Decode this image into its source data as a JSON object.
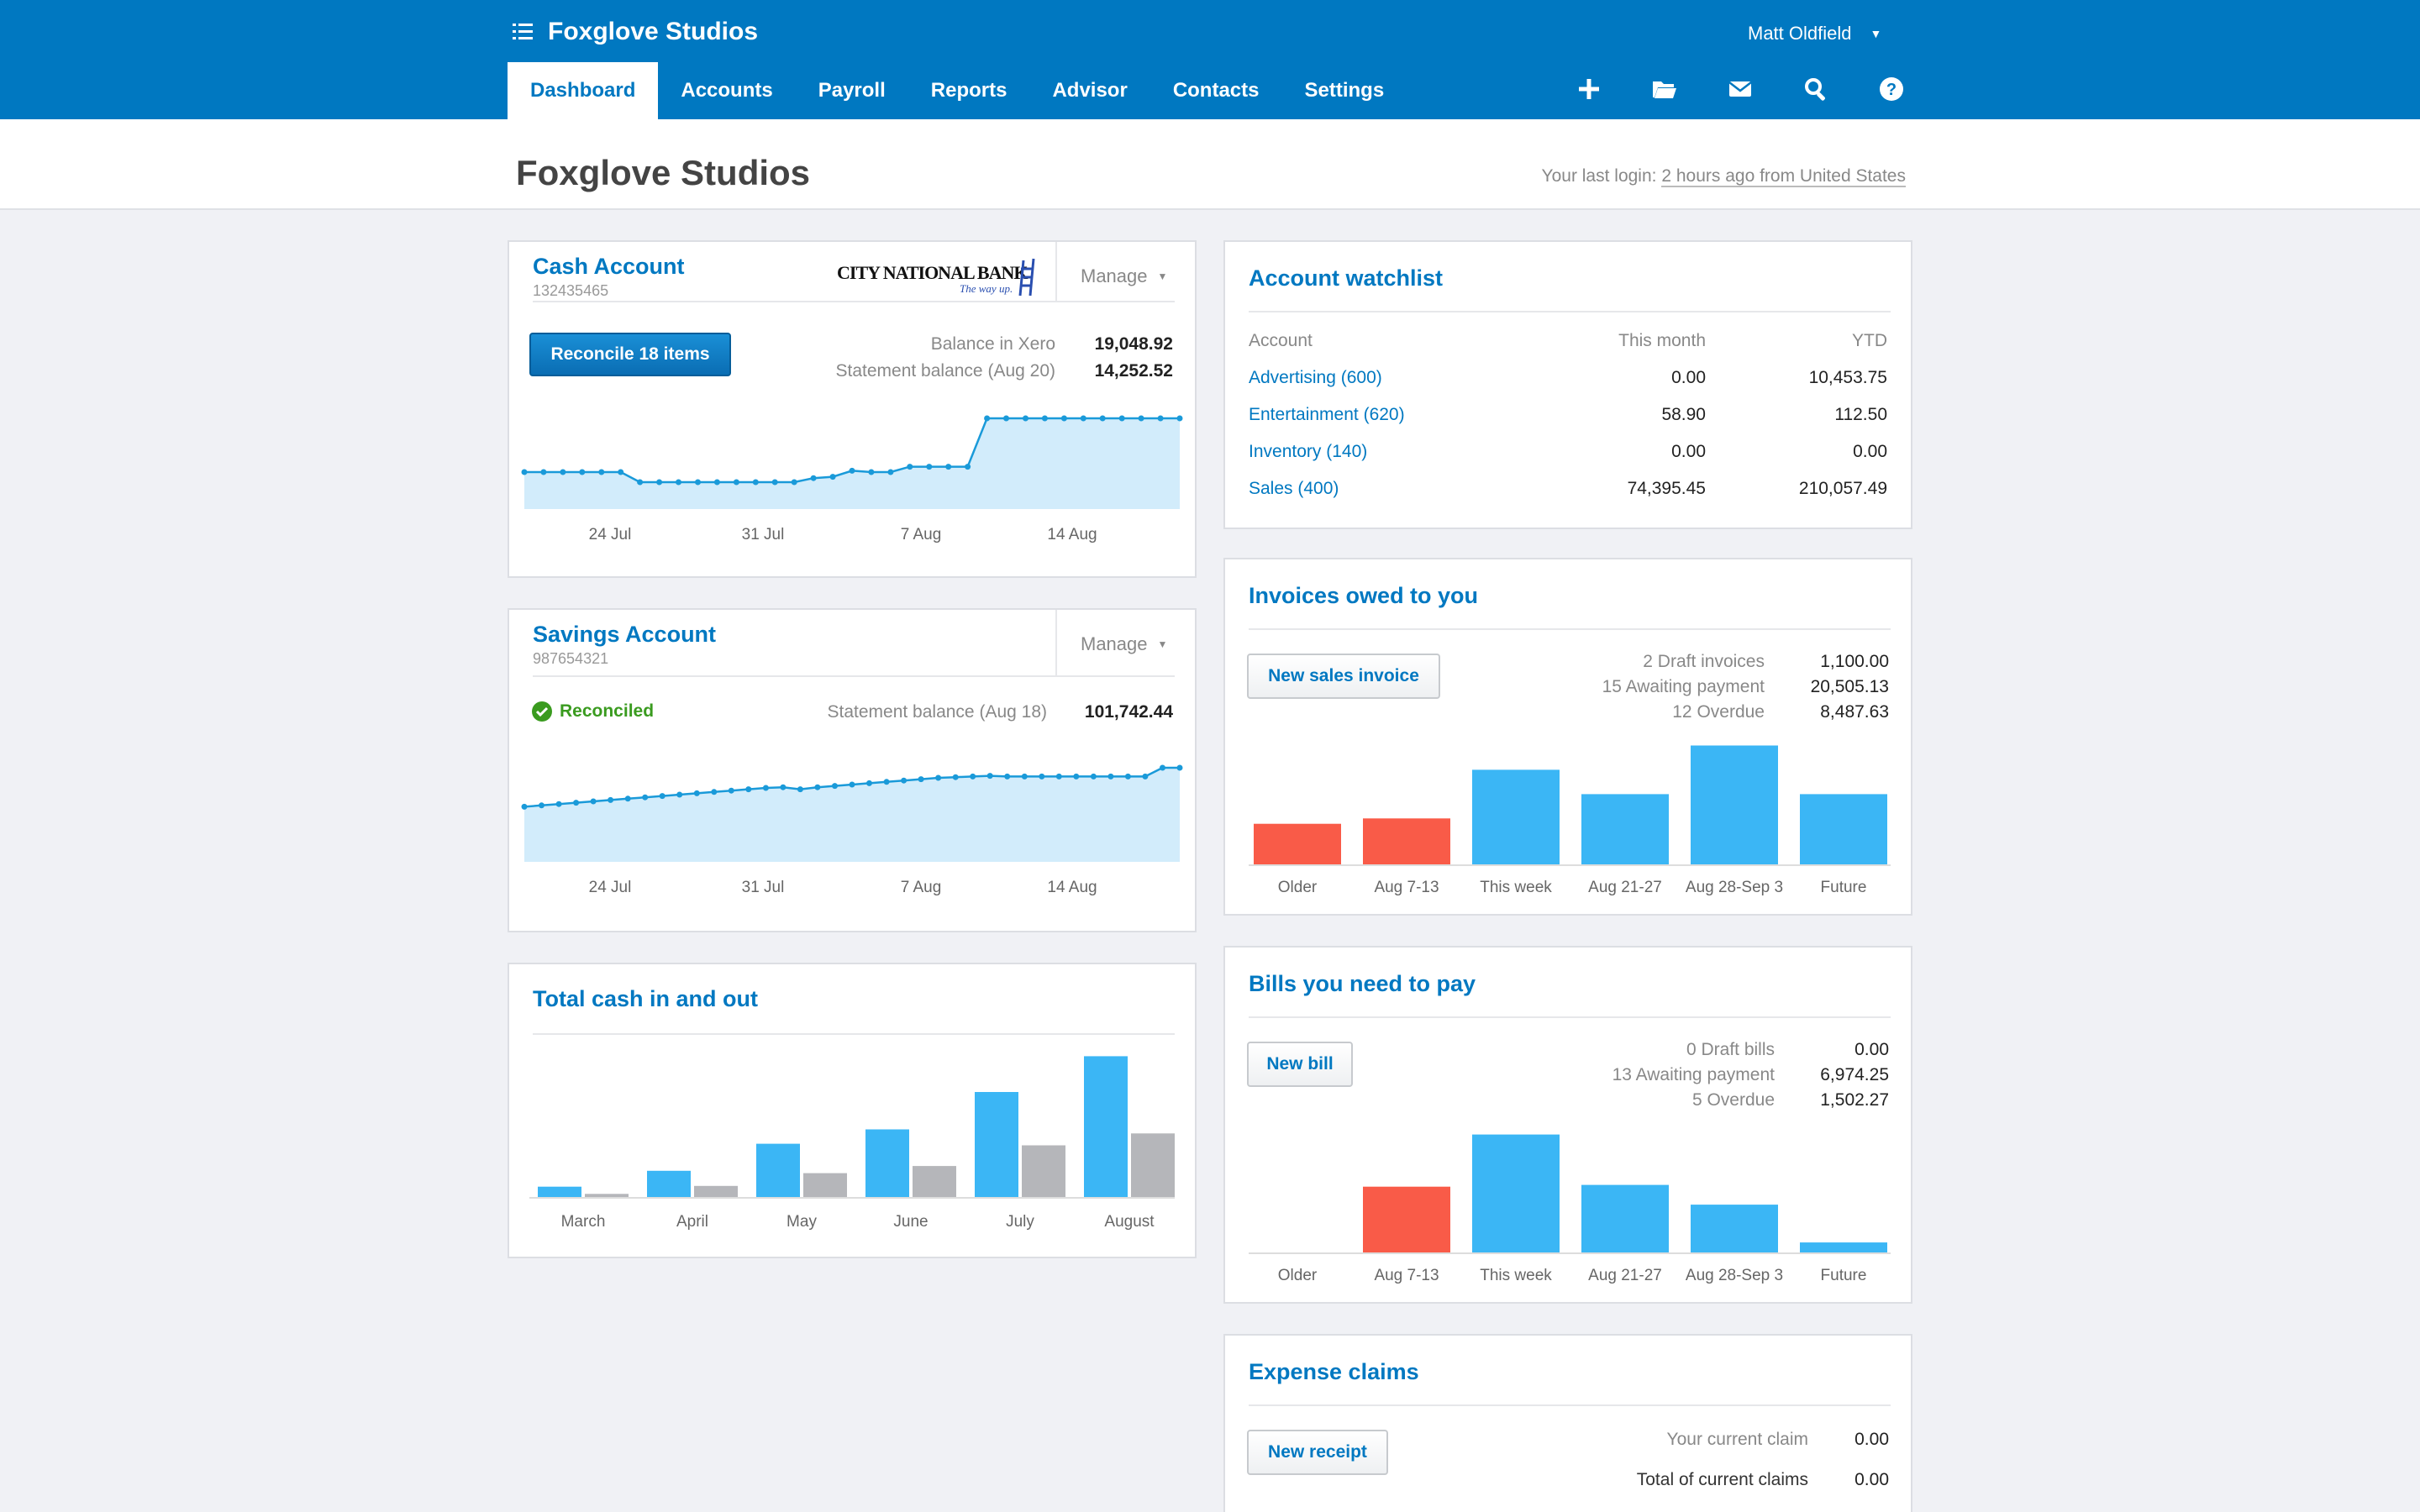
{
  "header": {
    "org_name": "Foxglove Studios",
    "user_name": "Matt Oldfield",
    "tabs": [
      "Dashboard",
      "Accounts",
      "Payroll",
      "Reports",
      "Advisor",
      "Contacts",
      "Settings"
    ],
    "active_tab": "Dashboard",
    "tool_icons": [
      "plus-icon",
      "folder-icon",
      "mail-icon",
      "search-icon",
      "help-icon"
    ],
    "colors": {
      "brand": "#0078c1",
      "bar_blue": "#3bb6f5",
      "bar_red": "#f95b48",
      "bar_grey": "#b5b6ba",
      "area_fill": "#d2ecfb"
    }
  },
  "subheader": {
    "title": "Foxglove Studios",
    "last_login_prefix": "Your last login:",
    "last_login_link": "2 hours ago from United States"
  },
  "cash_account": {
    "title": "Cash Account",
    "number": "132435465",
    "bank_name": "CITY NATIONAL BANK",
    "bank_tagline": "The way up.",
    "manage": "Manage",
    "reconcile_button": "Reconcile 18 items",
    "balance_label": "Balance in Xero",
    "balance_value": "19,048.92",
    "statement_label": "Statement balance (Aug 20)",
    "statement_value": "14,252.52",
    "chart_data": {
      "type": "area",
      "x_tick_labels": [
        "24 Jul",
        "31 Jul",
        "7 Aug",
        "14 Aug"
      ],
      "values": [
        55,
        55,
        55,
        55,
        55,
        55,
        40,
        40,
        40,
        40,
        40,
        40,
        40,
        40,
        40,
        46,
        48,
        57,
        55,
        55,
        63,
        63,
        63,
        63,
        135,
        135,
        135,
        135,
        135,
        135,
        135,
        135,
        135,
        135,
        135
      ],
      "ylim": [
        0,
        160
      ]
    }
  },
  "savings_account": {
    "title": "Savings Account",
    "number": "987654321",
    "manage": "Manage",
    "reconciled_label": "Reconciled",
    "statement_label": "Statement balance (Aug 18)",
    "statement_value": "101,742.44",
    "chart_data": {
      "type": "area",
      "x_tick_labels": [
        "24 Jul",
        "31 Jul",
        "7 Aug",
        "14 Aug"
      ],
      "values": [
        82,
        84,
        86,
        88,
        90,
        92,
        94,
        96,
        98,
        100,
        102,
        104,
        106,
        108,
        110,
        111,
        108,
        111,
        113,
        115,
        117,
        119,
        121,
        123,
        125,
        126,
        127,
        128,
        127,
        127,
        127,
        127,
        127,
        127,
        127,
        127,
        127,
        140,
        140
      ],
      "ylim": [
        0,
        160
      ]
    }
  },
  "total_cash": {
    "title": "Total cash in and out",
    "chart_data": {
      "type": "bar",
      "categories": [
        "March",
        "April",
        "May",
        "June",
        "July",
        "August"
      ],
      "series": [
        {
          "values": [
            14,
            34,
            68,
            86,
            133,
            178
          ]
        },
        {
          "values": [
            5,
            15,
            31,
            40,
            66,
            81
          ]
        }
      ],
      "ylim": [
        0,
        190
      ]
    }
  },
  "watchlist": {
    "title": "Account watchlist",
    "columns": [
      "Account",
      "This month",
      "YTD"
    ],
    "rows": [
      {
        "account": "Advertising (600)",
        "this_month": "0.00",
        "ytd": "10,453.75"
      },
      {
        "account": "Entertainment (620)",
        "this_month": "58.90",
        "ytd": "112.50"
      },
      {
        "account": "Inventory (140)",
        "this_month": "0.00",
        "ytd": "0.00"
      },
      {
        "account": "Sales (400)",
        "this_month": "74,395.45",
        "ytd": "210,057.49"
      }
    ]
  },
  "invoices": {
    "title": "Invoices owed to you",
    "button": "New sales invoice",
    "summary": [
      {
        "label": "2 Draft invoices",
        "value": "1,100.00"
      },
      {
        "label": "15 Awaiting payment",
        "value": "20,505.13"
      },
      {
        "label": "12 Overdue",
        "value": "8,487.63"
      }
    ],
    "chart_data": {
      "type": "bar",
      "categories": [
        "Older",
        "Aug 7-13",
        "This week",
        "Aug 21-27",
        "Aug 28-Sep 3",
        "Future"
      ],
      "values": [
        46,
        52,
        106,
        79,
        133,
        79
      ],
      "overdue": [
        true,
        true,
        false,
        false,
        false,
        false
      ],
      "ylim": [
        0,
        140
      ]
    }
  },
  "bills": {
    "title": "Bills you need to pay",
    "button": "New bill",
    "summary": [
      {
        "label": "0 Draft bills",
        "value": "0.00"
      },
      {
        "label": "13 Awaiting payment",
        "value": "6,974.25"
      },
      {
        "label": "5 Overdue",
        "value": "1,502.27"
      }
    ],
    "chart_data": {
      "type": "bar",
      "categories": [
        "Older",
        "Aug 7-13",
        "This week",
        "Aug 21-27",
        "Aug 28-Sep 3",
        "Future"
      ],
      "values": [
        0,
        74,
        132,
        76,
        54,
        12
      ],
      "overdue": [
        true,
        true,
        false,
        false,
        false,
        false
      ],
      "ylim": [
        0,
        140
      ]
    }
  },
  "expenses": {
    "title": "Expense claims",
    "button": "New receipt",
    "summary": [
      {
        "label": "Your current claim",
        "value": "0.00"
      },
      {
        "label": "Total of current claims",
        "value": "0.00"
      }
    ]
  }
}
